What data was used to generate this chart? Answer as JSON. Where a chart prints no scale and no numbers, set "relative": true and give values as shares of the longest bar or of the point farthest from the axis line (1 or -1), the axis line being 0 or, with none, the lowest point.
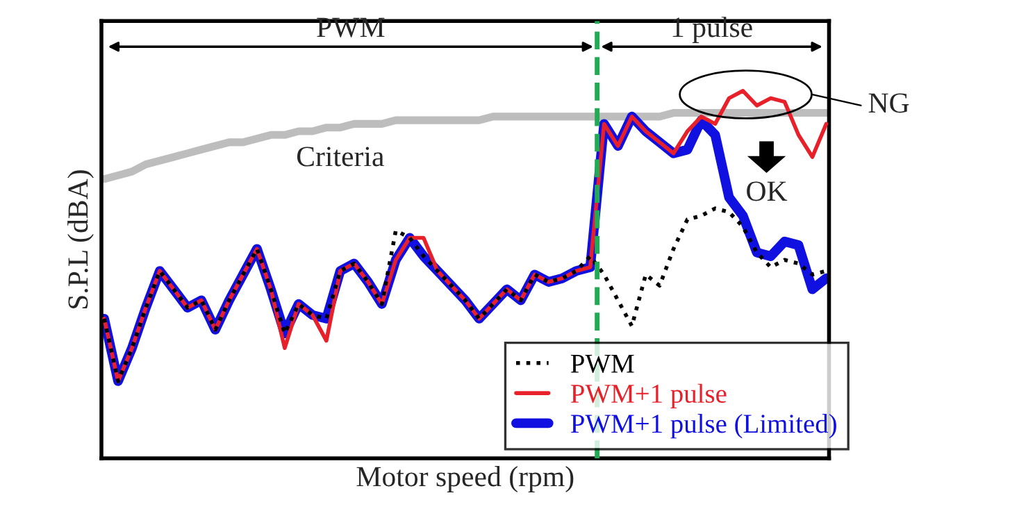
{
  "chart_data": {
    "type": "line",
    "relative": true,
    "xlabel": "Motor speed (rpm)",
    "ylabel": "S.P.L (dBA)",
    "categories": [
      null,
      null,
      null,
      null,
      null,
      null,
      null,
      null,
      null,
      null,
      null,
      null,
      null,
      null,
      null,
      null,
      null,
      null,
      null,
      null,
      null,
      null,
      null,
      null,
      null,
      null,
      null,
      null,
      null,
      null,
      null,
      null,
      null,
      null,
      null,
      null,
      null,
      null,
      null,
      null,
      null,
      null,
      null,
      null,
      null,
      null,
      null,
      null,
      null,
      null,
      null,
      null,
      null
    ],
    "series": [
      {
        "name": "PWM",
        "color": "#000000",
        "line_style": "dotted",
        "values": [
          0.38,
          0.21,
          0.3,
          0.41,
          0.51,
          0.46,
          0.41,
          0.43,
          0.35,
          0.43,
          0.5,
          0.57,
          0.46,
          0.34,
          0.42,
          0.39,
          0.38,
          0.51,
          0.53,
          0.48,
          0.42,
          0.62,
          0.6,
          0.55,
          0.51,
          0.47,
          0.43,
          0.38,
          0.42,
          0.46,
          0.43,
          0.5,
          0.48,
          0.49,
          0.51,
          0.55,
          0.5,
          0.43,
          0.36,
          0.5,
          0.47,
          0.57,
          0.65,
          0.66,
          0.68,
          0.67,
          0.63,
          0.56,
          0.52,
          0.54,
          0.53,
          0.5,
          0.51
        ]
      },
      {
        "name": "PWM+1 pulse",
        "color": "#e8202a",
        "line_style": "solid",
        "values": [
          0.38,
          0.21,
          0.3,
          0.41,
          0.51,
          0.46,
          0.41,
          0.43,
          0.35,
          0.43,
          0.5,
          0.57,
          0.46,
          0.3,
          0.42,
          0.39,
          0.32,
          0.51,
          0.53,
          0.48,
          0.42,
          0.54,
          0.6,
          0.6,
          0.51,
          0.47,
          0.43,
          0.38,
          0.42,
          0.46,
          0.43,
          0.5,
          0.48,
          0.49,
          0.51,
          0.52,
          0.91,
          0.85,
          0.93,
          0.89,
          0.86,
          0.83,
          0.89,
          0.93,
          0.91,
          0.98,
          1.0,
          0.96,
          0.98,
          0.97,
          0.88,
          0.82,
          0.91
        ]
      },
      {
        "name": "PWM+1 pulse (Limited)",
        "color": "#1010e0",
        "line_style": "solid",
        "values": [
          0.38,
          0.21,
          0.3,
          0.41,
          0.51,
          0.46,
          0.41,
          0.43,
          0.35,
          0.43,
          0.5,
          0.57,
          0.46,
          0.34,
          0.42,
          0.39,
          0.38,
          0.51,
          0.53,
          0.48,
          0.42,
          0.54,
          0.6,
          0.55,
          0.51,
          0.47,
          0.43,
          0.38,
          0.42,
          0.46,
          0.43,
          0.5,
          0.48,
          0.49,
          0.51,
          0.52,
          0.91,
          0.85,
          0.93,
          0.89,
          0.86,
          0.83,
          0.84,
          0.92,
          0.88,
          0.71,
          0.66,
          0.56,
          0.55,
          0.59,
          0.58,
          0.46,
          0.49
        ]
      },
      {
        "color": "#bdbdbd",
        "line_style": "solid",
        "values": [
          0.76,
          0.77,
          0.78,
          0.8,
          0.81,
          0.82,
          0.83,
          0.84,
          0.85,
          0.86,
          0.86,
          0.87,
          0.88,
          0.88,
          0.89,
          0.89,
          0.9,
          0.9,
          0.91,
          0.91,
          0.91,
          0.92,
          0.92,
          0.92,
          0.92,
          0.92,
          0.92,
          0.92,
          0.93,
          0.93,
          0.93,
          0.93,
          0.93,
          0.93,
          0.93,
          0.93,
          0.93,
          0.93,
          0.93,
          0.93,
          0.93,
          0.94,
          0.94,
          0.94,
          0.94,
          0.94,
          0.94,
          0.94,
          0.94,
          0.94,
          0.94,
          0.94,
          0.94
        ]
      }
    ],
    "annotations": [
      "PWM",
      "1 pulse",
      "Criteria",
      "NG",
      "OK"
    ],
    "legend": "bottom right",
    "marker": "none",
    "tick_labels": false
  }
}
